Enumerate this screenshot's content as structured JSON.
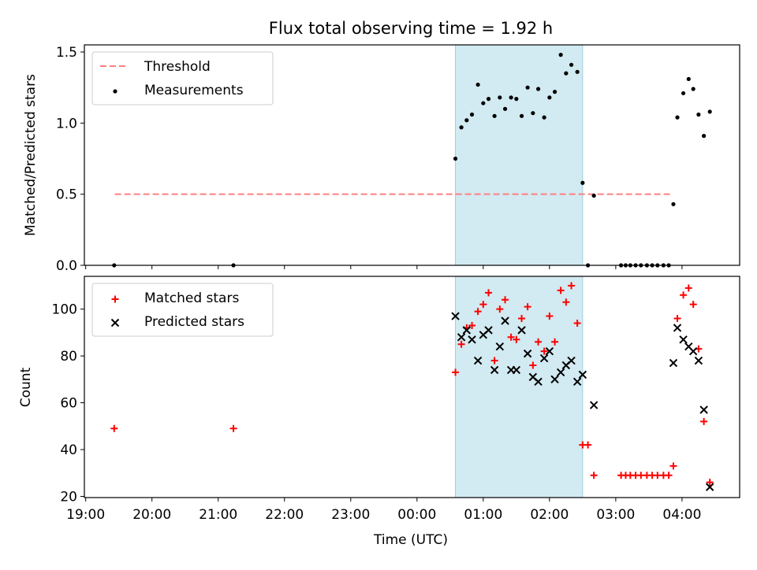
{
  "title": "Flux total observing time = 1.92 h",
  "xlabel": "Time (UTC)",
  "x_tick_labels": [
    "19:00",
    "20:00",
    "21:00",
    "22:00",
    "23:00",
    "00:00",
    "01:00",
    "02:00",
    "03:00",
    "04:00"
  ],
  "colors": {
    "threshold": "#ff7f7f",
    "measurement": "#000000",
    "matched": "#ff0000",
    "predicted": "#000000",
    "span": "#add8e6"
  },
  "chart_data": [
    {
      "type": "scatter",
      "ylabel": "Matched/Predicted stars",
      "x_unit": "hours since 19:00 UTC",
      "xlim": [
        -0.02,
        9.87
      ],
      "ylim": [
        0,
        1.55
      ],
      "y_ticks": [
        "0.0",
        "0.5",
        "1.0",
        "1.5"
      ],
      "y_tick_values": [
        0,
        0.5,
        1.0,
        1.5
      ],
      "legend": {
        "position": "upper-left",
        "entries": [
          "Threshold",
          "Measurements"
        ]
      },
      "highlight_span": [
        5.58,
        7.5
      ],
      "threshold": {
        "name": "Threshold",
        "y": 0.5,
        "x_range": [
          0.44,
          8.82
        ],
        "style": "dashed"
      },
      "series": [
        {
          "name": "Measurements",
          "marker": "dot",
          "points": [
            [
              0.43,
              0
            ],
            [
              2.23,
              0
            ],
            [
              5.58,
              0.75
            ],
            [
              5.67,
              0.97
            ],
            [
              5.75,
              1.02
            ],
            [
              5.83,
              1.06
            ],
            [
              5.92,
              1.27
            ],
            [
              6.0,
              1.14
            ],
            [
              6.08,
              1.17
            ],
            [
              6.17,
              1.05
            ],
            [
              6.25,
              1.18
            ],
            [
              6.33,
              1.1
            ],
            [
              6.42,
              1.18
            ],
            [
              6.5,
              1.17
            ],
            [
              6.58,
              1.05
            ],
            [
              6.67,
              1.25
            ],
            [
              6.75,
              1.07
            ],
            [
              6.83,
              1.24
            ],
            [
              6.92,
              1.04
            ],
            [
              7.0,
              1.18
            ],
            [
              7.08,
              1.22
            ],
            [
              7.17,
              1.48
            ],
            [
              7.25,
              1.35
            ],
            [
              7.33,
              1.41
            ],
            [
              7.42,
              1.36
            ],
            [
              7.5,
              0.58
            ],
            [
              7.58,
              0
            ],
            [
              7.67,
              0.49
            ],
            [
              8.08,
              0
            ],
            [
              8.15,
              0
            ],
            [
              8.22,
              0
            ],
            [
              8.3,
              0
            ],
            [
              8.38,
              0
            ],
            [
              8.47,
              0
            ],
            [
              8.55,
              0
            ],
            [
              8.63,
              0
            ],
            [
              8.72,
              0
            ],
            [
              8.8,
              0
            ],
            [
              8.87,
              0.43
            ],
            [
              8.93,
              1.04
            ],
            [
              9.02,
              1.21
            ],
            [
              9.1,
              1.31
            ],
            [
              9.17,
              1.24
            ],
            [
              9.25,
              1.06
            ],
            [
              9.33,
              0.91
            ],
            [
              9.42,
              1.08
            ]
          ]
        }
      ]
    },
    {
      "type": "scatter",
      "ylabel": "Count",
      "x_unit": "hours since 19:00 UTC",
      "xlim": [
        -0.02,
        9.87
      ],
      "ylim": [
        19.5,
        114
      ],
      "y_ticks": [
        "20",
        "40",
        "60",
        "80",
        "100"
      ],
      "y_tick_values": [
        20,
        40,
        60,
        80,
        100
      ],
      "legend": {
        "position": "upper-left",
        "entries": [
          "Matched stars",
          "Predicted stars"
        ]
      },
      "highlight_span": [
        5.58,
        7.5
      ],
      "series": [
        {
          "name": "Matched stars",
          "marker": "plus",
          "points": [
            [
              0.43,
              49
            ],
            [
              2.23,
              49
            ],
            [
              5.58,
              73
            ],
            [
              5.67,
              85
            ],
            [
              5.75,
              92
            ],
            [
              5.83,
              93
            ],
            [
              5.92,
              99
            ],
            [
              6.0,
              102
            ],
            [
              6.08,
              107
            ],
            [
              6.17,
              78
            ],
            [
              6.25,
              100
            ],
            [
              6.33,
              104
            ],
            [
              6.42,
              88
            ],
            [
              6.5,
              87
            ],
            [
              6.58,
              96
            ],
            [
              6.67,
              101
            ],
            [
              6.75,
              76
            ],
            [
              6.83,
              86
            ],
            [
              6.92,
              82
            ],
            [
              7.0,
              97
            ],
            [
              7.08,
              86
            ],
            [
              7.17,
              108
            ],
            [
              7.25,
              103
            ],
            [
              7.33,
              110
            ],
            [
              7.42,
              94
            ],
            [
              7.5,
              42
            ],
            [
              7.58,
              42
            ],
            [
              7.67,
              29
            ],
            [
              8.08,
              29
            ],
            [
              8.15,
              29
            ],
            [
              8.22,
              29
            ],
            [
              8.3,
              29
            ],
            [
              8.38,
              29
            ],
            [
              8.47,
              29
            ],
            [
              8.55,
              29
            ],
            [
              8.63,
              29
            ],
            [
              8.72,
              29
            ],
            [
              8.8,
              29
            ],
            [
              8.87,
              33
            ],
            [
              8.93,
              96
            ],
            [
              9.02,
              106
            ],
            [
              9.1,
              109
            ],
            [
              9.17,
              102
            ],
            [
              9.25,
              83
            ],
            [
              9.33,
              52
            ],
            [
              9.42,
              26
            ]
          ]
        },
        {
          "name": "Predicted stars",
          "marker": "x",
          "points": [
            [
              5.58,
              97
            ],
            [
              5.67,
              88
            ],
            [
              5.75,
              91
            ],
            [
              5.83,
              87
            ],
            [
              5.92,
              78
            ],
            [
              6.0,
              89
            ],
            [
              6.08,
              91
            ],
            [
              6.17,
              74
            ],
            [
              6.25,
              84
            ],
            [
              6.33,
              95
            ],
            [
              6.42,
              74
            ],
            [
              6.5,
              74
            ],
            [
              6.58,
              91
            ],
            [
              6.67,
              81
            ],
            [
              6.75,
              71
            ],
            [
              6.83,
              69
            ],
            [
              6.92,
              79
            ],
            [
              7.0,
              82
            ],
            [
              7.08,
              70
            ],
            [
              7.17,
              73
            ],
            [
              7.25,
              76
            ],
            [
              7.33,
              78
            ],
            [
              7.42,
              69
            ],
            [
              7.5,
              72
            ],
            [
              7.67,
              59
            ],
            [
              8.87,
              77
            ],
            [
              8.93,
              92
            ],
            [
              9.02,
              87
            ],
            [
              9.1,
              84
            ],
            [
              9.17,
              82
            ],
            [
              9.25,
              78
            ],
            [
              9.33,
              57
            ],
            [
              9.42,
              24
            ]
          ]
        }
      ]
    }
  ]
}
